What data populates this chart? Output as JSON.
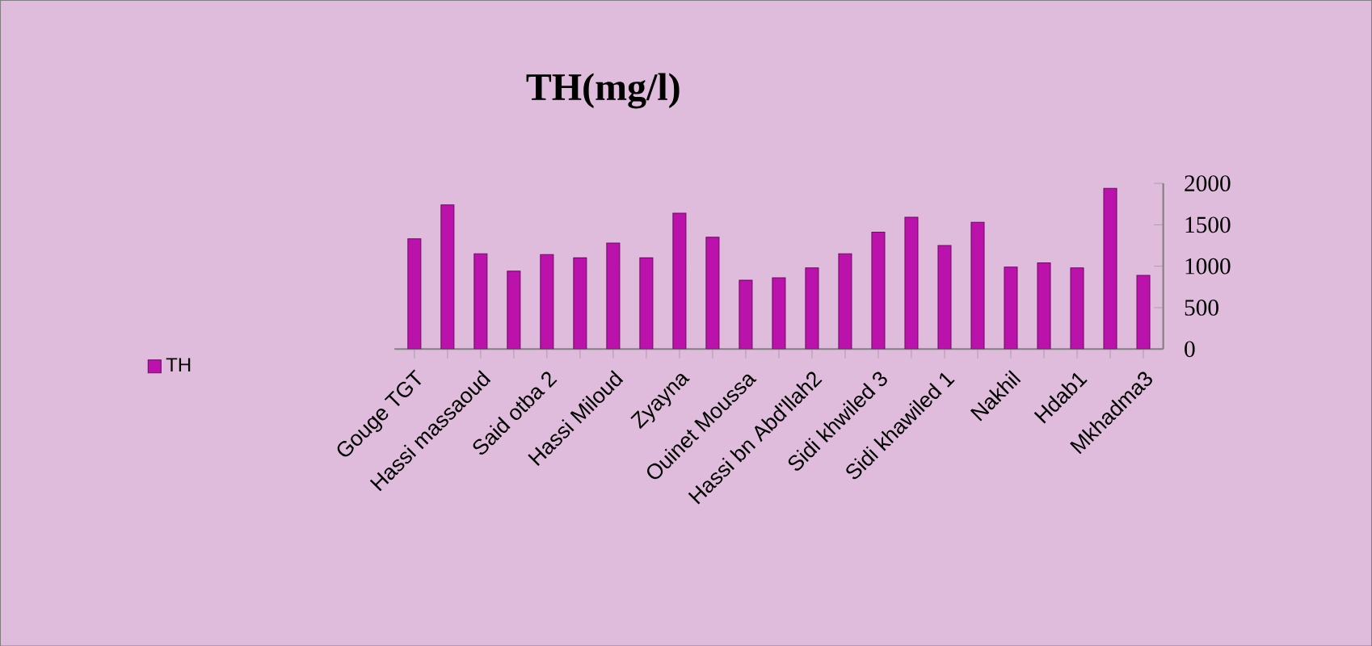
{
  "chart_data": {
    "type": "bar",
    "title": "TH(mg/l)",
    "categories": [
      "Gouge TGT",
      null,
      "Hassi massaoud",
      null,
      "Said otba 2",
      null,
      "Hassi Miloud",
      null,
      "Zyayna",
      null,
      "Ouinet Moussa",
      null,
      "Hassi bn Abd'llah2",
      null,
      "Sidi khwiled 3",
      null,
      "Sidi khawiled 1",
      null,
      "Nakhil",
      null,
      "Hdab1",
      null,
      "Mkhadma3"
    ],
    "series": [
      {
        "name": "TH",
        "color": "#bb12ab",
        "values": [
          1330,
          1740,
          1150,
          940,
          1140,
          1100,
          1280,
          1100,
          1640,
          1350,
          830,
          860,
          980,
          1150,
          1410,
          1590,
          1250,
          1530,
          990,
          1040,
          980,
          1940,
          890
        ]
      }
    ],
    "ylim": [
      0,
      2000
    ],
    "yticks": [
      0,
      500,
      1000,
      1500,
      2000
    ],
    "grid": false,
    "legend": "left"
  }
}
